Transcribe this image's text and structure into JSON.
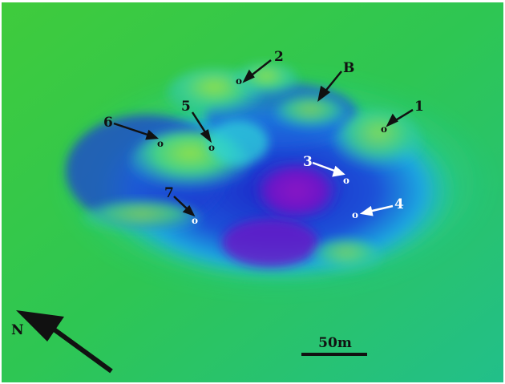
{
  "labels": {
    "site_1": "1",
    "site_2": "2",
    "site_3": "3",
    "site_4": "4",
    "site_5": "5",
    "site_6": "6",
    "site_7": "7",
    "feature_b": "B",
    "north": "N",
    "scale": "50m",
    "site_marker": "o"
  },
  "colors": {
    "background_green": "#31c443",
    "shallow_cyan": "#1fd6c8",
    "deep_blue": "#1f2fd0",
    "deepest_purple": "#7a12c8",
    "dark_label": "#111111",
    "light_label": "#ffffff"
  },
  "icons": [
    "north-arrow-icon",
    "pointer-arrow-icon",
    "scale-bar"
  ]
}
